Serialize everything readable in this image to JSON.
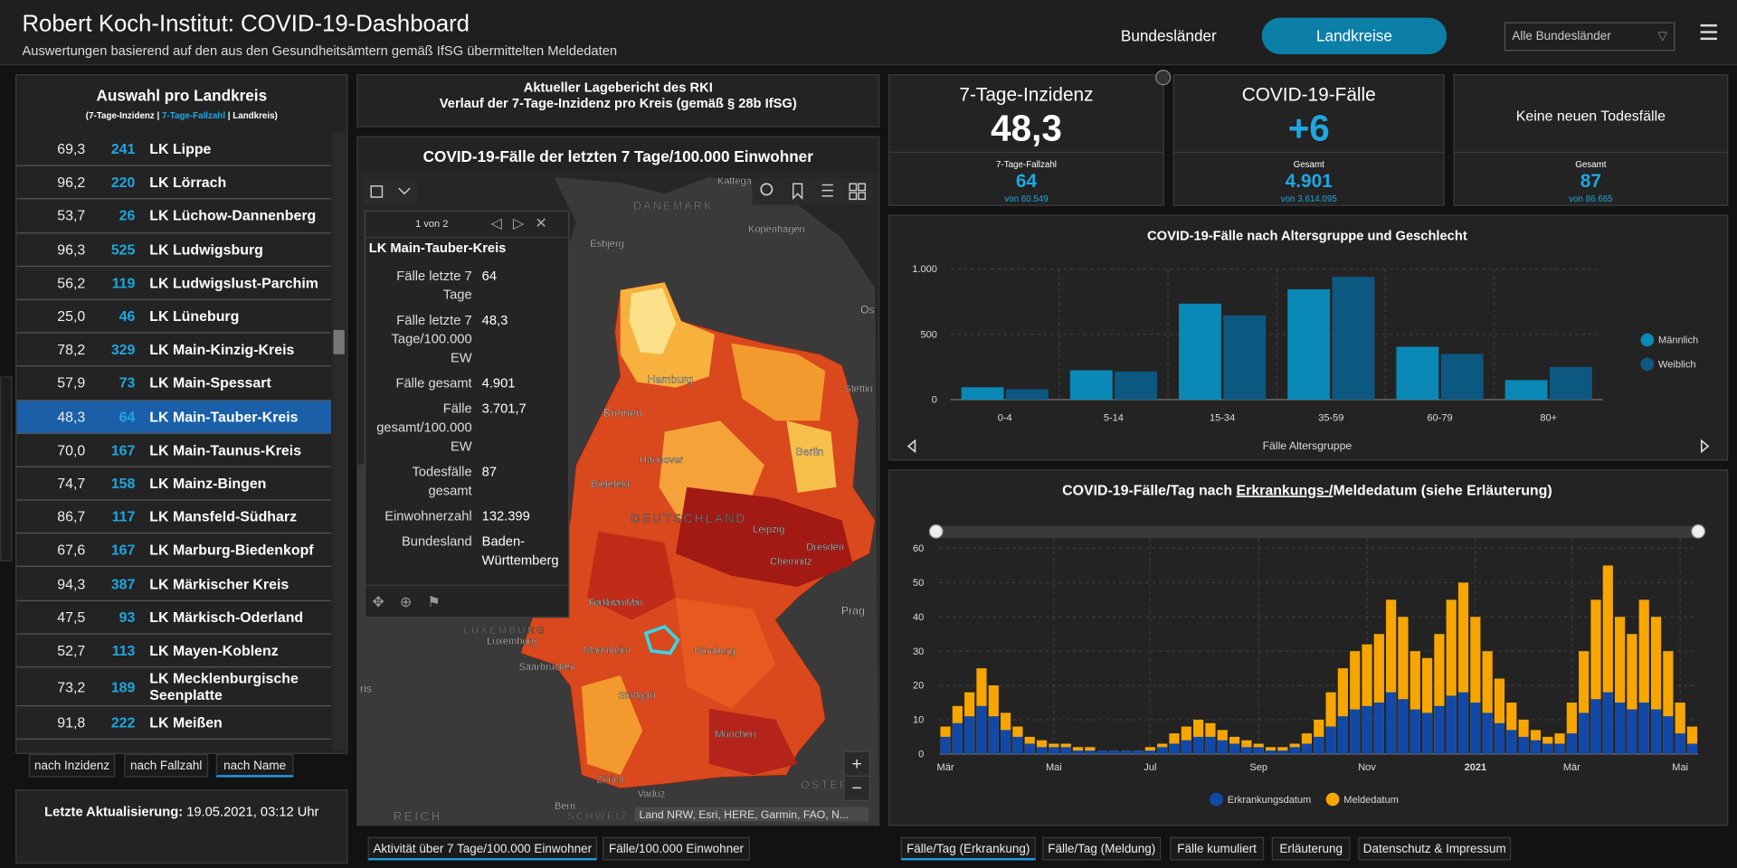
{
  "header": {
    "title": "Robert Koch-Institut: COVID-19-Dashboard",
    "subtitle": "Auswertungen basierend auf den aus den Gesundheitsämtern gemäß IfSG übermittelten Meldedaten"
  },
  "nav": {
    "tabs": [
      "Bundesländer",
      "Landkreise"
    ],
    "active": 1,
    "dropdown": "Alle Bundesländer"
  },
  "list": {
    "title": "Auswahl pro Landkreis",
    "subtitle": [
      "(7-Tage-Inzidenz |",
      "7-Tage-Fallzahl",
      "| Landkreis)"
    ],
    "selected": 8,
    "rows": [
      [
        "69,3",
        "241",
        "LK Lippe"
      ],
      [
        "96,2",
        "220",
        "LK Lörrach"
      ],
      [
        "53,7",
        "26",
        "LK Lüchow-Dannenberg"
      ],
      [
        "96,3",
        "525",
        "LK Ludwigsburg"
      ],
      [
        "56,2",
        "119",
        "LK Ludwigslust-Parchim"
      ],
      [
        "25,0",
        "46",
        "LK Lüneburg"
      ],
      [
        "78,2",
        "329",
        "LK Main-Kinzig-Kreis"
      ],
      [
        "57,9",
        "73",
        "LK Main-Spessart"
      ],
      [
        "48,3",
        "64",
        "LK Main-Tauber-Kreis"
      ],
      [
        "70,0",
        "167",
        "LK Main-Taunus-Kreis"
      ],
      [
        "74,7",
        "158",
        "LK Mainz-Bingen"
      ],
      [
        "86,7",
        "117",
        "LK Mansfeld-Südharz"
      ],
      [
        "67,6",
        "167",
        "LK Marburg-Biedenkopf"
      ],
      [
        "94,3",
        "387",
        "LK Märkischer Kreis"
      ],
      [
        "47,5",
        "93",
        "LK Märkisch-Oderland"
      ],
      [
        "52,7",
        "113",
        "LK Mayen-Koblenz"
      ],
      [
        "73,2",
        "189",
        "LK Mecklenburgische Seenplatte"
      ],
      [
        "91,8",
        "222",
        "LK Meißen"
      ]
    ],
    "sort_buttons": [
      "nach Inzidenz",
      "nach Fallzahl",
      "nach Name"
    ],
    "sort_active": 2
  },
  "update": {
    "label": "Letzte Aktualisierung:",
    "value": "19.05.2021, 03:12 Uhr"
  },
  "report": {
    "lines": [
      "Aktueller Lagebericht des RKI",
      "Verlauf der 7-Tage-Inzidenz pro Kreis (gemäß § 28b IfSG)"
    ]
  },
  "map": {
    "title": "COVID-19-Fälle der letzten 7 Tage/100.000 Einwohner",
    "labels": [
      "DÄNEMARK",
      "Kopenhagen",
      "Esbjerg",
      "Hamburg",
      "Bremen",
      "Stettin",
      "Hannover",
      "Berlin",
      "Bielefeld",
      "DEUTSCHLAND",
      "Leipzig",
      "Dresden",
      "Chemnitz",
      "Frankfurt am Main",
      "Prag",
      "LUXEMBURG",
      "Luxemburg",
      "Mannheim",
      "Nürnberg",
      "Saarbrücken",
      "Stuttgart",
      "München",
      "Zürich",
      "Vaduz",
      "Bern",
      "SCHWEIZ",
      "REICH",
      "ÖSTER",
      "Kattega",
      "Os",
      "ris"
    ],
    "attribution": "Land NRW, Esri, HERE, Garmin, FAO, N...",
    "popup": {
      "pager": "1 von 2",
      "title": "LK Main-Tauber-Kreis",
      "fields": [
        [
          "Fälle letzte 7 Tage",
          "64"
        ],
        [
          "Fälle letzte 7 Tage/100.000 EW",
          "48,3"
        ],
        [
          "Fälle gesamt",
          "4.901"
        ],
        [
          "Fälle gesamt/100.000 EW",
          "3.701,7"
        ],
        [
          "Todesfälle gesamt",
          "87"
        ],
        [
          "Einwohnerzahl",
          "132.399"
        ],
        [
          "Bundesland",
          "Baden-Württemberg"
        ]
      ]
    }
  },
  "map_tabs": [
    "Aktivität über 7 Tage/100.000 Einwohner",
    "Fälle/100.000 Einwohner"
  ],
  "kpis": [
    {
      "title": "7-Tage-Inzidenz",
      "value": "48,3",
      "sub_label": "7-Tage-Fallzahl",
      "sub_value": "64",
      "sub_total": "von 60.549"
    },
    {
      "title": "COVID-19-Fälle",
      "value": "+6",
      "sub_label": "Gesamt",
      "sub_value": "4.901",
      "sub_total": "von 3.614.095"
    },
    {
      "title": "Keine neuen Todesfälle",
      "sub_label": "Gesamt",
      "sub_value": "87",
      "sub_total": "von 86.665"
    }
  ],
  "chart_data": [
    {
      "type": "bar",
      "title": "COVID-19-Fälle nach Altersgruppe und Geschlecht",
      "xlabel": "Fälle Altersgruppe",
      "categories": [
        "0-4",
        "5-14",
        "15-34",
        "35-59",
        "60-79",
        "80+"
      ],
      "series": [
        {
          "name": "Männlich",
          "color": "#0a88b6",
          "values": [
            95,
            225,
            735,
            845,
            405,
            150
          ]
        },
        {
          "name": "Weiblich",
          "color": "#0c5880",
          "values": [
            80,
            215,
            645,
            940,
            350,
            250
          ]
        }
      ],
      "ylim": [
        0,
        1000
      ],
      "yticks": [
        0,
        500,
        {
          "value": 1000,
          "label": "1.000"
        }
      ],
      "grid": true,
      "legend": "right"
    },
    {
      "type": "overlay_bar",
      "title": [
        "COVID-19-Fälle/Tag nach ",
        "Erkrankungs-/",
        "Meldedatum (siehe Erläuterung)"
      ],
      "categories": [
        "Mär",
        null,
        null,
        null,
        null,
        null,
        null,
        null,
        null,
        "Mai",
        null,
        null,
        null,
        null,
        null,
        null,
        null,
        "Jul",
        null,
        null,
        null,
        null,
        null,
        null,
        null,
        null,
        "Sep",
        null,
        null,
        null,
        null,
        null,
        null,
        null,
        null,
        "Nov",
        null,
        null,
        null,
        null,
        null,
        null,
        null,
        null,
        "2021",
        null,
        null,
        null,
        null,
        null,
        null,
        null,
        "Mär",
        null,
        null,
        null,
        null,
        null,
        null,
        null,
        null,
        "Mai",
        null
      ],
      "series": [
        {
          "name": "Meldedatum",
          "color": "#f7a600",
          "values": [
            8,
            14,
            18,
            25,
            20,
            12,
            8,
            5,
            4,
            3,
            3,
            2,
            2,
            1,
            1,
            1,
            1,
            2,
            3,
            6,
            8,
            10,
            9,
            7,
            5,
            4,
            3,
            2,
            2,
            3,
            6,
            10,
            18,
            25,
            30,
            32,
            35,
            45,
            40,
            30,
            28,
            35,
            45,
            50,
            40,
            30,
            22,
            15,
            10,
            7,
            5,
            6,
            15,
            30,
            45,
            55,
            40,
            35,
            45,
            40,
            30,
            15,
            8
          ]
        },
        {
          "name": "Erkrankungsdatum",
          "color": "#1249a8",
          "values": [
            5,
            9,
            11,
            14,
            11,
            7,
            5,
            3,
            2,
            2,
            2,
            1,
            1,
            1,
            1,
            1,
            1,
            1,
            2,
            3,
            4,
            5,
            5,
            4,
            3,
            2,
            2,
            1,
            1,
            2,
            3,
            5,
            8,
            11,
            13,
            14,
            15,
            18,
            16,
            13,
            12,
            14,
            17,
            18,
            15,
            12,
            9,
            7,
            5,
            4,
            3,
            3,
            6,
            12,
            16,
            18,
            15,
            13,
            15,
            13,
            11,
            6,
            3
          ]
        }
      ],
      "legend_order": [
        1,
        0
      ],
      "ylim": [
        0,
        63
      ],
      "yticks": [
        0,
        10,
        20,
        30,
        40,
        50,
        60
      ],
      "grid": true,
      "legend": "bottom"
    }
  ],
  "right_tabs": [
    "Fälle/Tag (Erkrankung)",
    "Fälle/Tag (Meldung)",
    "Fälle kumuliert",
    "Erläuterung",
    "Datenschutz & Impressum"
  ]
}
